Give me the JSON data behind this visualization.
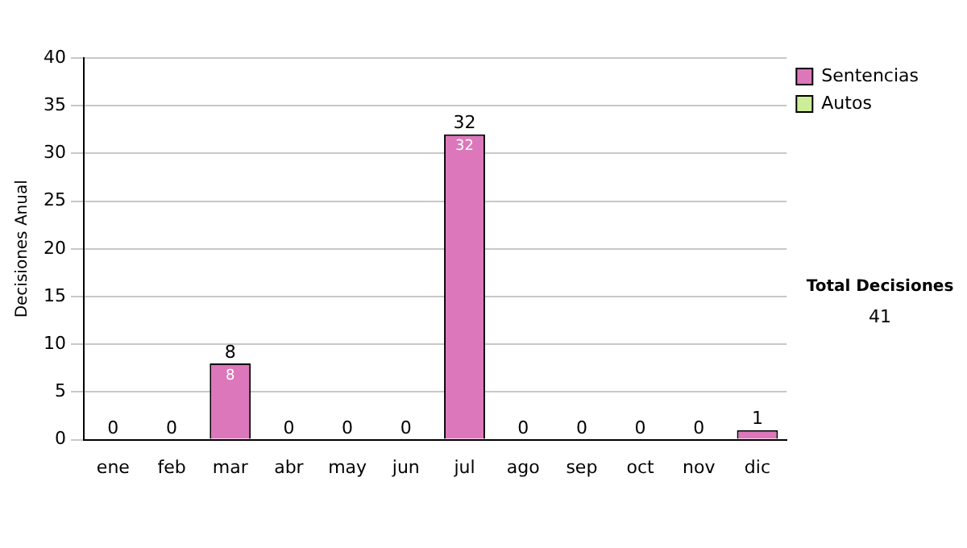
{
  "chart_data": {
    "type": "bar",
    "ylabel": "Decisiones Anual",
    "stacked": true,
    "categories": [
      "ene",
      "feb",
      "mar",
      "abr",
      "may",
      "jun",
      "jul",
      "ago",
      "sep",
      "oct",
      "nov",
      "dic"
    ],
    "series": [
      {
        "name": "Sentencias",
        "color": "#dd77bb",
        "values": [
          0,
          0,
          8,
          0,
          0,
          0,
          32,
          0,
          0,
          0,
          0,
          1
        ],
        "value_labels": [
          null,
          null,
          "8",
          null,
          null,
          null,
          "32",
          null,
          null,
          null,
          null,
          null
        ]
      },
      {
        "name": "Autos",
        "color": "#ccee99",
        "values": [
          0,
          0,
          0,
          0,
          0,
          0,
          0,
          0,
          0,
          0,
          0,
          0
        ]
      }
    ],
    "totals": [
      "0",
      "0",
      "8",
      "0",
      "0",
      "0",
      "32",
      "0",
      "0",
      "0",
      "0",
      "1"
    ],
    "ylim": [
      0,
      40
    ],
    "yticks": [
      0,
      5,
      10,
      15,
      20,
      25,
      30,
      35,
      40
    ],
    "grid": "y",
    "legend": "right",
    "annotations": [
      "Total Decisiones",
      "41"
    ]
  }
}
